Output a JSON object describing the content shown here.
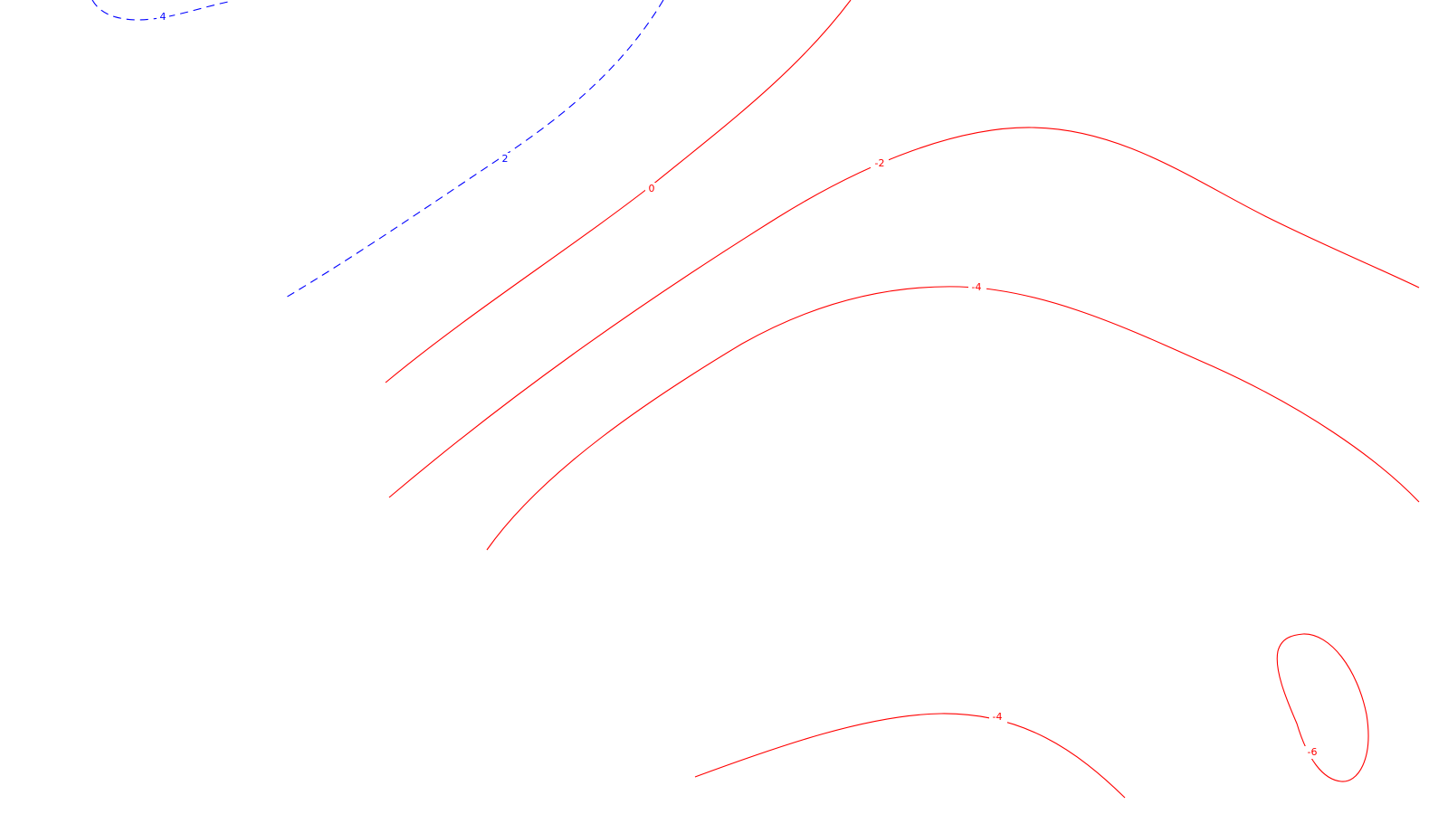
{
  "colors": {
    "positive": "#0000ff",
    "negative": "#ff0000",
    "background": "#ffffff"
  },
  "contours": [
    {
      "id": "contour-4-blue",
      "level": 4,
      "label": "4",
      "style": "dashed",
      "color": "#0000ff"
    },
    {
      "id": "contour-2-blue",
      "level": 2,
      "label": "2",
      "style": "dashed",
      "color": "#0000ff"
    },
    {
      "id": "contour-0",
      "level": 0,
      "label": "0",
      "style": "solid",
      "color": "#ff0000"
    },
    {
      "id": "contour-neg2",
      "level": -2,
      "label": "-2",
      "style": "solid",
      "color": "#ff0000"
    },
    {
      "id": "contour-neg4-upper",
      "level": -4,
      "label": "-4",
      "style": "solid",
      "color": "#ff0000"
    },
    {
      "id": "contour-neg4-lower",
      "level": -4,
      "label": "-4",
      "style": "solid",
      "color": "#ff0000"
    },
    {
      "id": "contour-neg6",
      "level": -6,
      "label": "-6",
      "style": "solid",
      "color": "#ff0000"
    }
  ]
}
